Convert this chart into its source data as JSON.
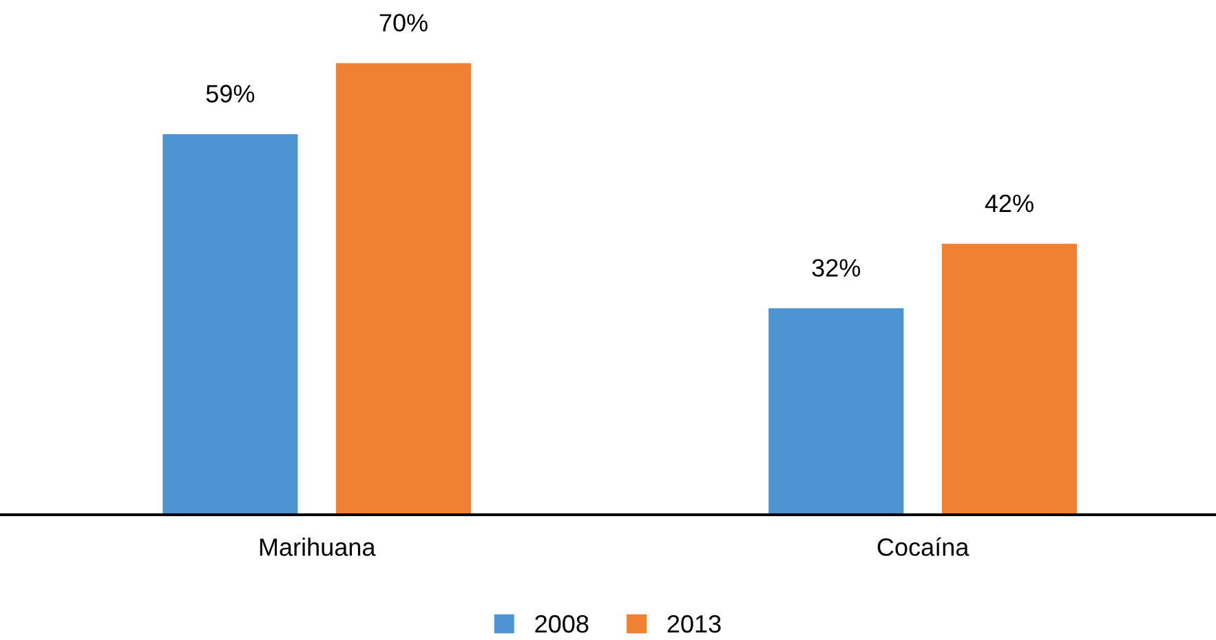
{
  "chart_data": {
    "type": "bar",
    "categories": [
      "Marihuana",
      "Cocaína"
    ],
    "series": [
      {
        "name": "2008",
        "color": "#4e93d2",
        "values": [
          59,
          32
        ],
        "value_labels": [
          "59%",
          "32%"
        ]
      },
      {
        "name": "2013",
        "color": "#f08133",
        "values": [
          70,
          42
        ],
        "value_labels": [
          "70%",
          "42%"
        ]
      }
    ],
    "grid": false,
    "legend": "bottom"
  }
}
